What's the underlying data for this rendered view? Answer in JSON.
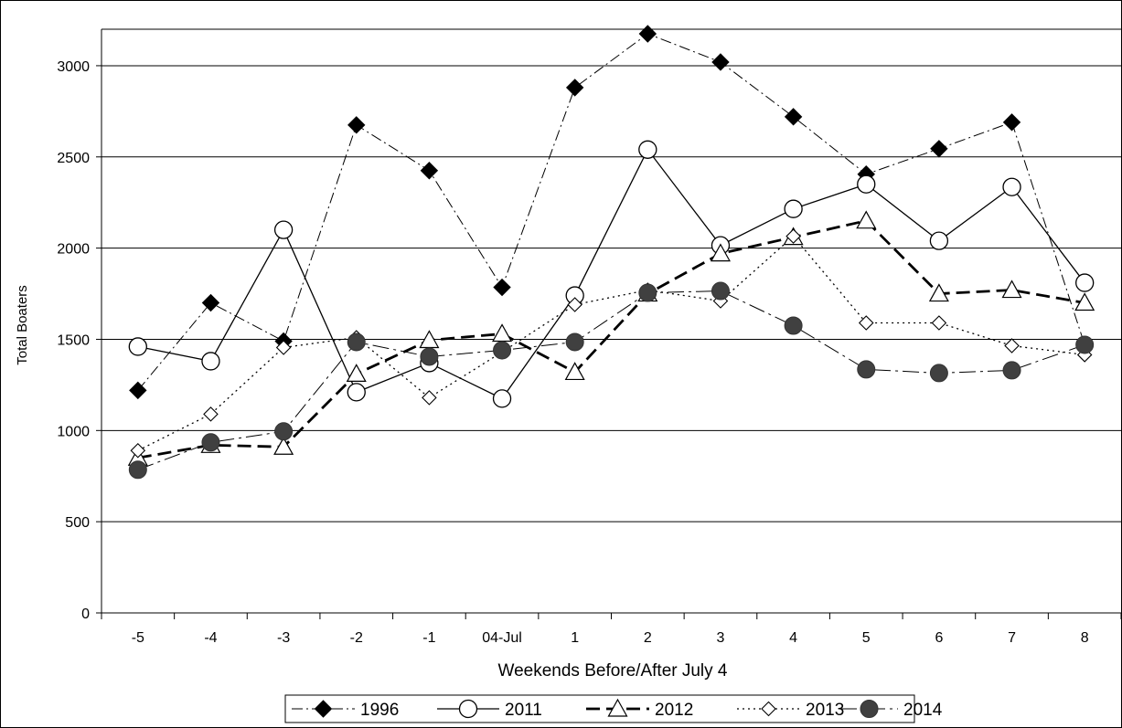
{
  "chart_data": {
    "type": "line",
    "title": "",
    "xlabel": "Weekends Before/After July 4",
    "ylabel": "Total Boaters",
    "categories": [
      "-5",
      "-4",
      "-3",
      "-2",
      "-1",
      "04-Jul",
      "1",
      "2",
      "3",
      "4",
      "5",
      "6",
      "7",
      "8"
    ],
    "ylim": [
      0,
      3200
    ],
    "yticks": [
      "0",
      "500",
      "1000",
      "1500",
      "2000",
      "2500",
      "3000"
    ],
    "grid": "horizontal",
    "legend_position": "bottom",
    "series": [
      {
        "name": "1996",
        "marker": "filled-diamond",
        "line": "dash-dot",
        "color": "#000000",
        "values": [
          1220,
          1700,
          1490,
          2675,
          2425,
          1785,
          2880,
          3175,
          3020,
          2720,
          2405,
          2545,
          2690,
          1470
        ]
      },
      {
        "name": "2011",
        "marker": "open-circle",
        "line": "solid",
        "color": "#000000",
        "values": [
          1460,
          1380,
          2100,
          1210,
          1370,
          1175,
          1740,
          2540,
          2015,
          2215,
          2350,
          2040,
          2335,
          1810
        ]
      },
      {
        "name": "2012",
        "marker": "open-triangle",
        "line": "thick-dash",
        "color": "#000000",
        "values": [
          850,
          920,
          910,
          1310,
          1495,
          1530,
          1320,
          1750,
          1970,
          2060,
          2150,
          1750,
          1770,
          1700
        ]
      },
      {
        "name": "2013",
        "marker": "open-diamond",
        "line": "dotted",
        "color": "#000000",
        "values": [
          890,
          1090,
          1455,
          1510,
          1180,
          1430,
          1690,
          1770,
          1710,
          2065,
          1590,
          1590,
          1465,
          1415
        ]
      },
      {
        "name": "2014",
        "marker": "filled-circle",
        "line": "long-dash-dot",
        "color": "#000000",
        "values": [
          785,
          935,
          995,
          1485,
          1405,
          1440,
          1485,
          1755,
          1765,
          1575,
          1335,
          1315,
          1330,
          1470
        ]
      }
    ]
  }
}
